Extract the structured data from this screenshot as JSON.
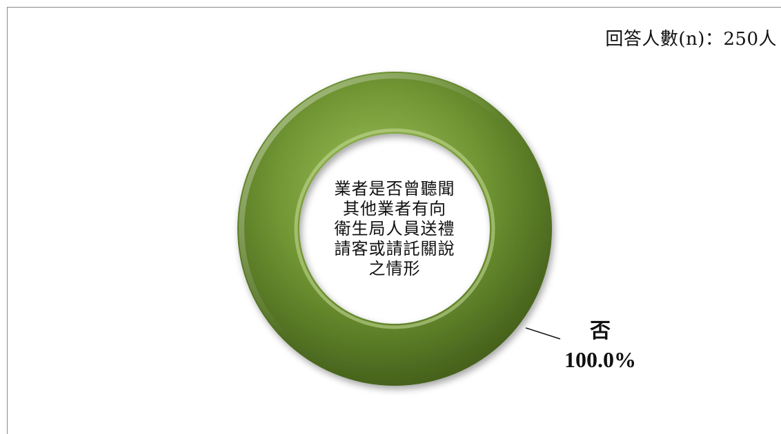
{
  "sample_note": "回答人數(n)：250人",
  "center_lines": [
    "業者是否曾聽聞",
    "其他業者有向",
    "衛生局人員送禮",
    "請客或請託關說",
    "之情形"
  ],
  "colors": {
    "ring_light": "#9fc25c",
    "ring_mid": "#6f9432",
    "ring_dark": "#46621c"
  },
  "chart_data": {
    "type": "pie",
    "style": "donut",
    "categories": [
      "否"
    ],
    "values": [
      100.0
    ],
    "labels": [
      "100.0%"
    ],
    "annotations": [
      "回答人數(n)：250人"
    ]
  }
}
